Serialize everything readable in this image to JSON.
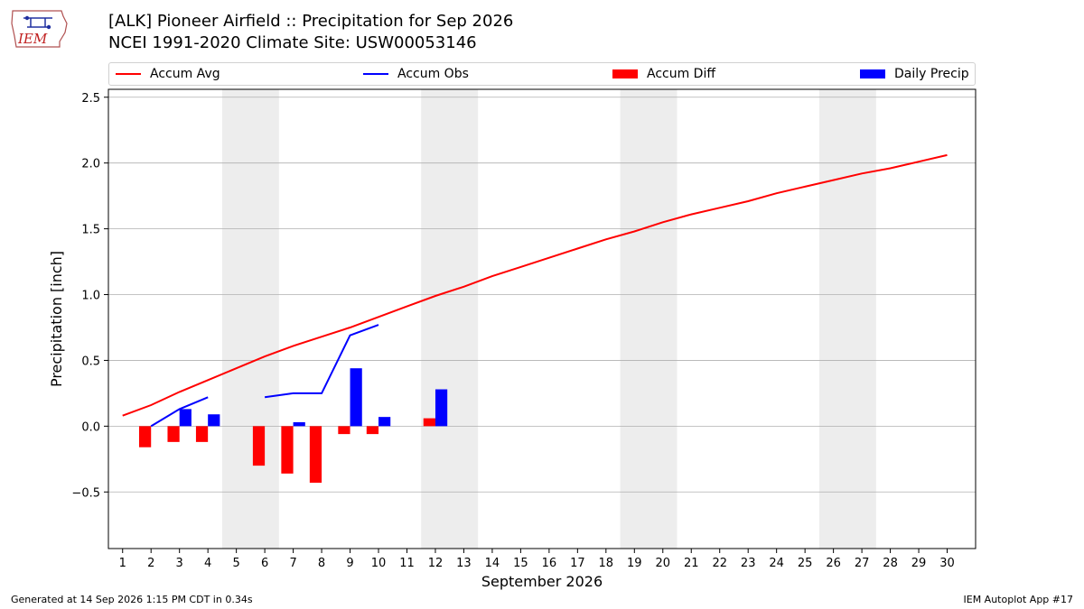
{
  "header": {
    "title_line1": "[ALK] Pioneer Airfield :: Precipitation for Sep 2026",
    "title_line2": "NCEI 1991-2020 Climate Site: USW00053146",
    "logo_text": "IEM"
  },
  "footer": {
    "generated": "Generated at 14 Sep 2026 1:15 PM CDT in 0.34s",
    "app": "IEM Autoplot App #17"
  },
  "colors": {
    "avg": "#ff0000",
    "obs": "#0000ff",
    "diff": "#ff0000",
    "daily": "#0000ff",
    "weekend_shade": "#ededed",
    "grid": "#b0b0b0"
  },
  "chart_data": {
    "type": "bar",
    "xlabel": "September 2026",
    "ylabel": "Precipitation [inch]",
    "xlim": [
      0.5,
      31
    ],
    "ylim": [
      -0.93,
      2.56
    ],
    "yticks": [
      -0.5,
      0.0,
      0.5,
      1.0,
      1.5,
      2.0,
      2.5
    ],
    "ytick_labels": [
      "−0.5",
      "0.0",
      "0.5",
      "1.0",
      "1.5",
      "2.0",
      "2.5"
    ],
    "days": [
      1,
      2,
      3,
      4,
      5,
      6,
      7,
      8,
      9,
      10,
      11,
      12,
      13,
      14,
      15,
      16,
      17,
      18,
      19,
      20,
      21,
      22,
      23,
      24,
      25,
      26,
      27,
      28,
      29,
      30
    ],
    "weekend_spans": [
      [
        4.5,
        6.5
      ],
      [
        11.5,
        13.5
      ],
      [
        18.5,
        20.5
      ],
      [
        25.5,
        27.5
      ]
    ],
    "grid": "horizontal",
    "legend_position": "top",
    "legend": [
      "Accum Avg",
      "Accum Obs",
      "Accum Diff",
      "Daily Precip"
    ],
    "accum_avg": [
      0.08,
      0.16,
      0.26,
      0.35,
      0.44,
      0.53,
      0.61,
      0.68,
      0.75,
      0.83,
      0.91,
      0.99,
      1.06,
      1.14,
      1.21,
      1.28,
      1.35,
      1.42,
      1.48,
      1.55,
      1.61,
      1.66,
      1.71,
      1.77,
      1.82,
      1.87,
      1.92,
      1.96,
      2.01,
      2.06
    ],
    "accum_obs": [
      null,
      0.0,
      0.13,
      0.22,
      null,
      0.22,
      0.25,
      0.25,
      0.69,
      0.77,
      null,
      null,
      null,
      null,
      null,
      null,
      null,
      null,
      null,
      null,
      null,
      null,
      null,
      null,
      null,
      null,
      null,
      null,
      null,
      null
    ],
    "accum_diff": [
      null,
      -0.16,
      -0.12,
      -0.12,
      null,
      -0.3,
      -0.36,
      -0.43,
      -0.06,
      -0.06,
      null,
      0.06,
      null,
      null,
      null,
      null,
      null,
      null,
      null,
      null,
      null,
      null,
      null,
      null,
      null,
      null,
      null,
      null,
      null,
      null
    ],
    "daily_precip": [
      null,
      0.0,
      0.13,
      0.09,
      null,
      null,
      0.03,
      null,
      0.44,
      0.07,
      null,
      0.28,
      null,
      null,
      null,
      null,
      null,
      null,
      null,
      null,
      null,
      null,
      null,
      null,
      null,
      null,
      null,
      null,
      null,
      null
    ]
  }
}
